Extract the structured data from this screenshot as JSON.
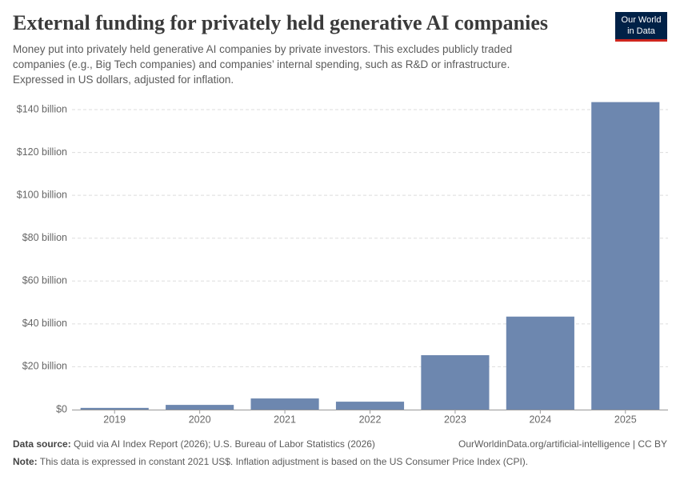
{
  "header": {
    "title": "External funding for privately held generative AI companies",
    "subtitle_lines": [
      "Money put into privately held generative AI companies by private investors. This excludes publicly traded",
      "companies (e.g., Big Tech companies) and companies’ internal spending, such as R&D or infrastructure.",
      "Expressed in US dollars, adjusted for inflation."
    ],
    "logo_lines": [
      "Our World",
      "in Data"
    ]
  },
  "chart_data": {
    "type": "bar",
    "categories": [
      "2019",
      "2020",
      "2021",
      "2022",
      "2023",
      "2024",
      "2025"
    ],
    "values": [
      0.8,
      2.2,
      5.2,
      3.7,
      25.4,
      43.4,
      143.5
    ],
    "color": "#6d87af",
    "ylim": [
      0,
      140
    ],
    "yticks": [
      {
        "value": 0,
        "label": "$0"
      },
      {
        "value": 20,
        "label": "$20 billion"
      },
      {
        "value": 40,
        "label": "$40 billion"
      },
      {
        "value": 60,
        "label": "$60 billion"
      },
      {
        "value": 80,
        "label": "$80 billion"
      },
      {
        "value": 100,
        "label": "$100 billion"
      },
      {
        "value": 120,
        "label": "$120 billion"
      },
      {
        "value": 140,
        "label": "$140 billion"
      }
    ],
    "grid": true
  },
  "footer": {
    "source_label": "Data source:",
    "source": "Quid via AI Index Report (2026); U.S. Bureau of Labor Statistics (2026)",
    "url": "OurWorldinData.org/artificial-intelligence | CC BY",
    "note_label": "Note:",
    "note": "This data is expressed in constant 2021 US$. Inflation adjustment is based on the US Consumer Price Index (CPI)."
  }
}
